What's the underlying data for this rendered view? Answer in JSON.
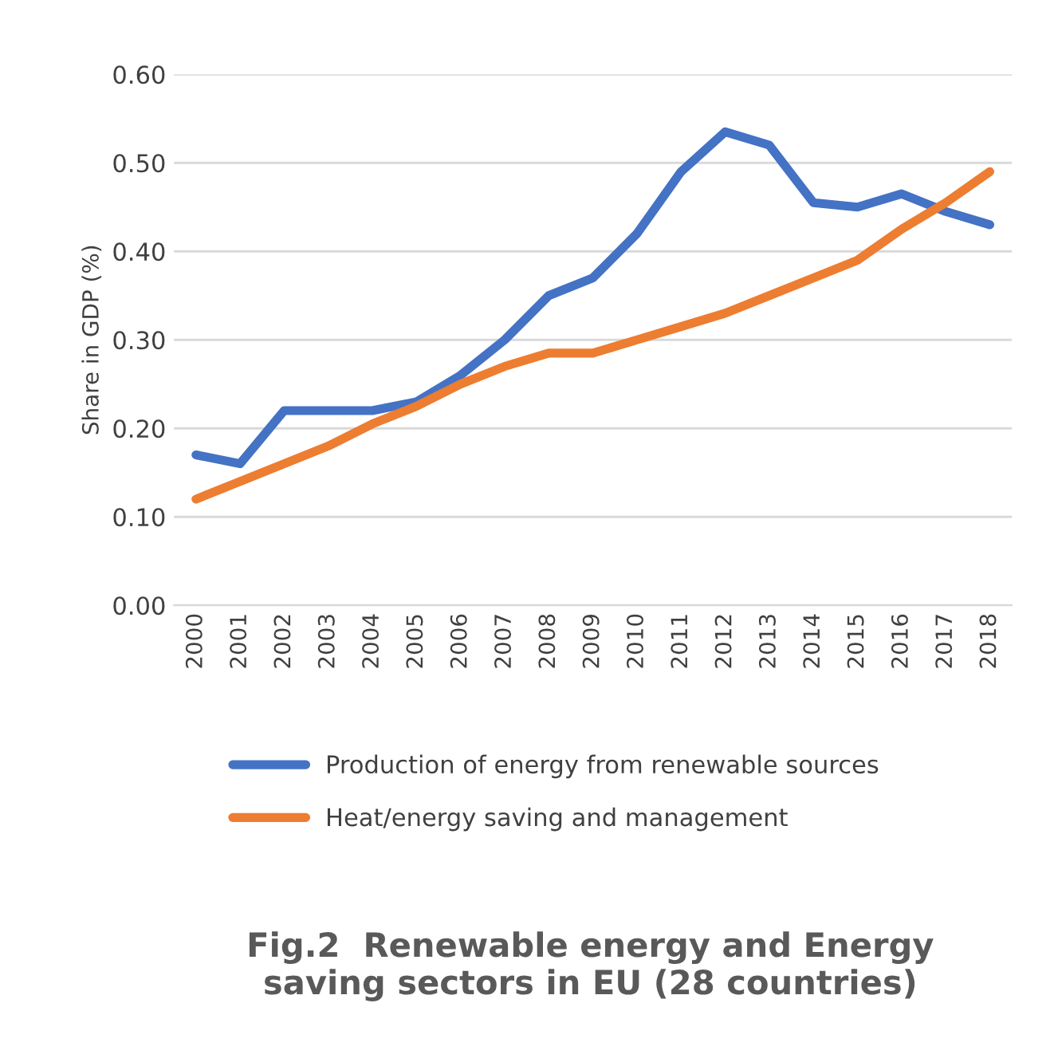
{
  "chart_data": {
    "type": "line",
    "title": "Fig.2  Renewable energy and Energy\nsaving sectors in EU (28 countries)",
    "ylabel": "Share in GDP (%)",
    "categories": [
      "2000",
      "2001",
      "2002",
      "2003",
      "2004",
      "2005",
      "2006",
      "2007",
      "2008",
      "2009",
      "2010",
      "2011",
      "2012",
      "2013",
      "2014",
      "2015",
      "2016",
      "2017",
      "2018"
    ],
    "series": [
      {
        "name": "Production of energy from renewable sources",
        "color": "#4472c4",
        "values": [
          0.17,
          0.16,
          0.22,
          0.22,
          0.22,
          0.23,
          0.26,
          0.3,
          0.35,
          0.37,
          0.42,
          0.49,
          0.535,
          0.52,
          0.455,
          0.45,
          0.465,
          0.445,
          0.43
        ]
      },
      {
        "name": "Heat/energy saving and management",
        "color": "#ed7d31",
        "values": [
          0.12,
          0.14,
          0.16,
          0.18,
          0.205,
          0.225,
          0.25,
          0.27,
          0.285,
          0.285,
          0.3,
          0.315,
          0.33,
          0.35,
          0.37,
          0.39,
          0.425,
          0.455,
          0.49
        ]
      }
    ],
    "ylim": [
      0,
      0.6
    ],
    "yticks": [
      {
        "value": 0,
        "label": "0.00"
      },
      {
        "value": 0.1,
        "label": "0.10"
      },
      {
        "value": 0.2,
        "label": "0.20"
      },
      {
        "value": 0.3,
        "label": "0.30"
      },
      {
        "value": 0.4,
        "label": "0.40"
      },
      {
        "value": 0.5,
        "label": "0.50"
      },
      {
        "value": 0.6,
        "label": "0.60"
      }
    ],
    "grid": "y",
    "legend": "bottom"
  }
}
